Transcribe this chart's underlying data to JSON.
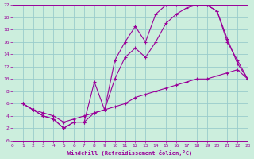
{
  "line1_x": [
    1,
    2,
    3,
    4,
    5,
    6,
    7,
    8,
    9,
    10,
    11,
    12,
    13,
    14,
    15,
    16,
    17,
    18,
    19,
    20,
    21,
    22,
    23
  ],
  "line1_y": [
    6,
    5,
    4.5,
    4,
    3,
    3.5,
    4,
    4.5,
    5,
    5.5,
    6,
    7,
    7.5,
    8,
    8.5,
    9,
    9.5,
    10,
    10,
    10.5,
    11,
    11.5,
    10
  ],
  "line2_x": [
    1,
    2,
    3,
    4,
    5,
    6,
    7,
    8,
    9,
    10,
    11,
    12,
    13,
    14,
    15,
    16,
    17,
    18,
    19,
    20,
    21,
    22,
    23
  ],
  "line2_y": [
    6,
    5,
    4,
    3.5,
    2,
    3,
    3,
    9.5,
    5,
    13,
    16,
    18.5,
    16,
    20.5,
    22,
    22,
    22,
    22,
    22,
    21,
    16.5,
    12.5,
    10
  ],
  "line3_x": [
    1,
    2,
    3,
    4,
    5,
    6,
    7,
    8,
    9,
    10,
    11,
    12,
    13,
    14,
    15,
    16,
    17,
    18,
    19,
    20,
    21,
    22,
    23
  ],
  "line3_y": [
    6,
    5,
    4,
    3.5,
    2,
    3,
    3,
    4.5,
    5,
    10,
    13.5,
    15,
    13.5,
    16,
    19,
    20.5,
    21.5,
    22,
    22,
    21,
    16,
    13,
    10
  ],
  "color": "#990099",
  "bg_color": "#cceedd",
  "grid_color": "#99cccc",
  "xlabel": "Windchill (Refroidissement éolien,°C)",
  "xlim": [
    0,
    23
  ],
  "ylim": [
    0,
    22
  ],
  "xticks": [
    0,
    1,
    2,
    3,
    4,
    5,
    6,
    7,
    8,
    9,
    10,
    11,
    12,
    13,
    14,
    15,
    16,
    17,
    18,
    19,
    20,
    21,
    22,
    23
  ],
  "yticks": [
    0,
    2,
    4,
    6,
    8,
    10,
    12,
    14,
    16,
    18,
    20,
    22
  ]
}
